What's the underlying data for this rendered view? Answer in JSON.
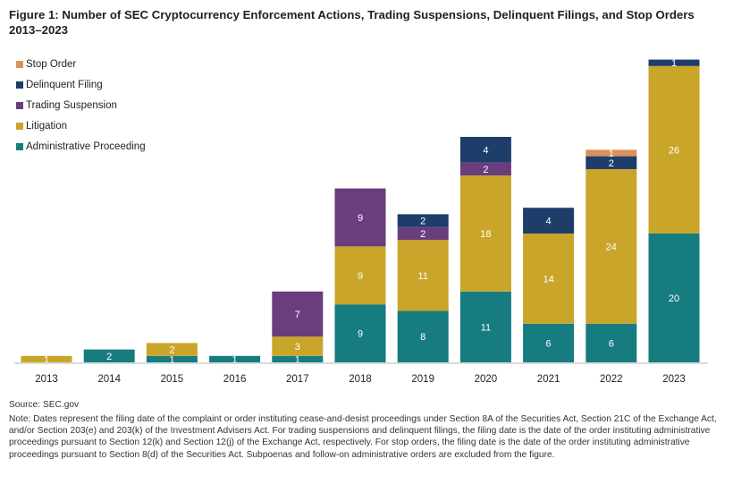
{
  "title": "Figure 1: Number of SEC Cryptocurrency Enforcement Actions, Trading Suspensions, Delinquent Filings, and Stop Orders 2013–2023",
  "legend": [
    {
      "label": "Stop Order",
      "color": "#d9925a"
    },
    {
      "label": "Delinquent Filing",
      "color": "#1f3d6b"
    },
    {
      "label": "Trading Suspension",
      "color": "#6a3d7c"
    },
    {
      "label": "Litigation",
      "color": "#c9a52a"
    },
    {
      "label": "Administrative Proceeding",
      "color": "#167c80"
    }
  ],
  "chart_data": {
    "type": "bar",
    "stacked": true,
    "title": "Number of SEC Cryptocurrency Enforcement Actions, Trading Suspensions, Delinquent Filings, and Stop Orders 2013–2023",
    "categories": [
      "2013",
      "2014",
      "2015",
      "2016",
      "2017",
      "2018",
      "2019",
      "2020",
      "2021",
      "2022",
      "2023"
    ],
    "series": [
      {
        "name": "Administrative Proceeding",
        "color": "#167c80",
        "values": [
          0,
          2,
          1,
          1,
          1,
          9,
          8,
          11,
          6,
          6,
          20
        ]
      },
      {
        "name": "Litigation",
        "color": "#c9a52a",
        "values": [
          1,
          0,
          2,
          0,
          3,
          9,
          11,
          18,
          14,
          24,
          26
        ]
      },
      {
        "name": "Trading Suspension",
        "color": "#6a3d7c",
        "values": [
          0,
          0,
          0,
          0,
          7,
          9,
          2,
          2,
          0,
          0,
          0
        ]
      },
      {
        "name": "Delinquent Filing",
        "color": "#1f3d6b",
        "values": [
          0,
          0,
          0,
          0,
          0,
          0,
          2,
          4,
          4,
          2,
          1
        ]
      },
      {
        "name": "Stop Order",
        "color": "#d9925a",
        "values": [
          0,
          0,
          0,
          0,
          0,
          0,
          0,
          0,
          0,
          1,
          0
        ]
      }
    ],
    "xlabel": "",
    "ylabel": "",
    "ylim": [
      0,
      47
    ],
    "legend_position": "top-left",
    "grid": false
  },
  "source": "Source: SEC.gov",
  "note": "Note: Dates represent the filing date of the complaint or order instituting cease-and-desist proceedings under Section 8A of the Securities Act, Section 21C of the Exchange Act, and/or Section 203(e) and 203(k) of the Investment Advisers Act. For trading suspensions and delinquent filings, the filing date is the date of the order instituting administrative proceedings pursuant to Section 12(k) and Section 12(j) of the Exchange Act, respectively. For stop orders, the filing date is the date of the order instituting administrative proceedings pursuant to Section 8(d) of the Securities Act. Subpoenas and follow-on administrative orders are excluded from the figure."
}
